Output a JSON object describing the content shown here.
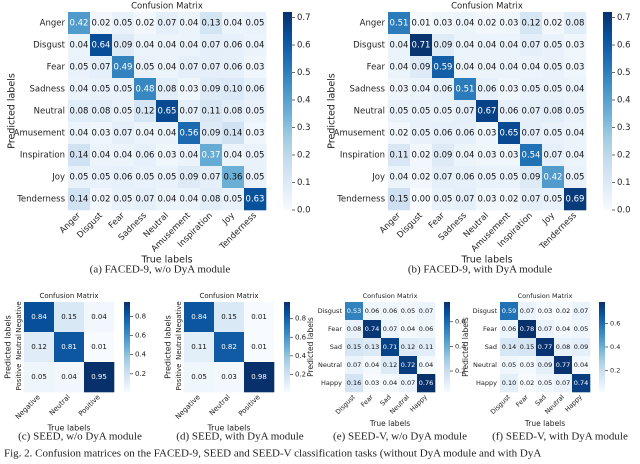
{
  "chart_data": [
    {
      "type": "heatmap",
      "title": "Confusion Matrix",
      "caption": "(a) FACED-9, w/o DyA module",
      "xlabel": "True labels",
      "ylabel": "Predicted labels",
      "categories": [
        "Anger",
        "Disgust",
        "Fear",
        "Sadness",
        "Neutral",
        "Amusement",
        "Inspiration",
        "Joy",
        "Tenderness"
      ],
      "values": [
        [
          0.42,
          0.02,
          0.05,
          0.02,
          0.07,
          0.04,
          0.13,
          0.04,
          0.05
        ],
        [
          0.04,
          0.64,
          0.09,
          0.04,
          0.04,
          0.04,
          0.07,
          0.06,
          0.04
        ],
        [
          0.05,
          0.07,
          0.49,
          0.05,
          0.04,
          0.07,
          0.07,
          0.06,
          0.03
        ],
        [
          0.04,
          0.05,
          0.05,
          0.48,
          0.08,
          0.03,
          0.09,
          0.1,
          0.06
        ],
        [
          0.08,
          0.08,
          0.05,
          0.12,
          0.65,
          0.07,
          0.11,
          0.08,
          0.05
        ],
        [
          0.04,
          0.03,
          0.07,
          0.04,
          0.04,
          0.56,
          0.09,
          0.14,
          0.03
        ],
        [
          0.14,
          0.04,
          0.04,
          0.06,
          0.03,
          0.04,
          0.37,
          0.04,
          0.05
        ],
        [
          0.05,
          0.05,
          0.06,
          0.05,
          0.05,
          0.09,
          0.07,
          0.36,
          0.05
        ],
        [
          0.14,
          0.02,
          0.05,
          0.07,
          0.04,
          0.04,
          0.08,
          0.05,
          0.63
        ]
      ],
      "value_labels": [
        [
          "0.42",
          "0.02",
          "0.05",
          "0.02",
          "0.07",
          "0.04",
          "0.13",
          "0.04",
          "0.05"
        ],
        [
          "0.04",
          "0.64",
          "0.09",
          "0.04",
          "0.04",
          "0.04",
          "0.07",
          "0.06",
          "0.04"
        ],
        [
          "0.05",
          "0.07",
          "0.49",
          "0.05",
          "0.04",
          "0.07",
          "0.07",
          "0.06",
          "0.03"
        ],
        [
          "0.04",
          "0.05",
          "0.05",
          "0.48",
          "0.08",
          "0.03",
          "0.09",
          "0.10",
          "0.06"
        ],
        [
          "0.08",
          "0.08",
          "0.05",
          "0.12",
          "0.65",
          "0.07",
          "0.11",
          "0.08",
          "0.05"
        ],
        [
          "0.04",
          "0.03",
          "0.07",
          "0.04",
          "0.04",
          "0.56",
          "0.09",
          "0.14",
          "0.03"
        ],
        [
          "0.14",
          "0.04",
          "0.04",
          "0.06",
          "0.03",
          "0.04",
          "0.37",
          "0.04",
          "0.05"
        ],
        [
          "0.05",
          "0.05",
          "0.06",
          "0.05",
          "0.05",
          "0.09",
          "0.07",
          "0.36",
          "0.05"
        ],
        [
          "0.14",
          "0.02",
          "0.05",
          "0.07",
          "0.04",
          "0.04",
          "0.08",
          "0.05",
          "0.63"
        ]
      ],
      "clim": [
        0,
        0.72
      ],
      "cticks": [
        {
          "value": 0,
          "label": "0.0"
        },
        0.1,
        0.2,
        0.3,
        0.4,
        0.5,
        0.6,
        0.7
      ],
      "colors": [
        "#f7fbff",
        "#deebf7",
        "#c6dbef",
        "#9ecae1",
        "#6baed6",
        "#4292c6",
        "#2171b5",
        "#08519c",
        "#08306b"
      ]
    },
    {
      "type": "heatmap",
      "title": "Confusion Matrix",
      "caption": "(b) FACED-9, with DyA module",
      "xlabel": "True labels",
      "ylabel": "Predicted labels",
      "categories": [
        "Anger",
        "Disgust",
        "Fear",
        "Sadness",
        "Neutral",
        "Amusement",
        "Inspiration",
        "Joy",
        "Tenderness"
      ],
      "values": [
        [
          0.51,
          0.01,
          0.03,
          0.04,
          0.02,
          0.03,
          0.12,
          0.02,
          0.08
        ],
        [
          0.04,
          0.71,
          0.09,
          0.04,
          0.04,
          0.04,
          0.07,
          0.05,
          0.03
        ],
        [
          0.04,
          0.09,
          0.59,
          0.04,
          0.04,
          0.04,
          0.04,
          0.05,
          0.03
        ],
        [
          0.03,
          0.04,
          0.06,
          0.51,
          0.06,
          0.03,
          0.05,
          0.05,
          0.04
        ],
        [
          0.05,
          0.05,
          0.05,
          0.07,
          0.67,
          0.06,
          0.07,
          0.08,
          0.05
        ],
        [
          0.02,
          0.05,
          0.06,
          0.06,
          0.03,
          0.65,
          0.07,
          0.05,
          0.04
        ],
        [
          0.11,
          0.02,
          0.09,
          0.04,
          0.03,
          0.03,
          0.54,
          0.07,
          0.04
        ],
        [
          0.04,
          0.02,
          0.07,
          0.06,
          0.05,
          0.05,
          0.09,
          0.42,
          0.05
        ],
        [
          0.15,
          0,
          0.05,
          0.07,
          0.03,
          0.02,
          0.07,
          0.05,
          0.69
        ]
      ],
      "value_labels": [
        [
          "0.51",
          "0.01",
          "0.03",
          "0.04",
          "0.02",
          "0.03",
          "0.12",
          "0.02",
          "0.08"
        ],
        [
          "0.04",
          "0.71",
          "0.09",
          "0.04",
          "0.04",
          "0.04",
          "0.07",
          "0.05",
          "0.03"
        ],
        [
          "0.04",
          "0.09",
          "0.59",
          "0.04",
          "0.04",
          "0.04",
          "0.04",
          "0.05",
          "0.03"
        ],
        [
          "0.03",
          "0.04",
          "0.06",
          "0.51",
          "0.06",
          "0.03",
          "0.05",
          "0.05",
          "0.04"
        ],
        [
          "0.05",
          "0.05",
          "0.05",
          "0.07",
          "0.67",
          "0.06",
          "0.07",
          "0.08",
          "0.05"
        ],
        [
          "0.02",
          "0.05",
          "0.06",
          "0.06",
          "0.03",
          "0.65",
          "0.07",
          "0.05",
          "0.04"
        ],
        [
          "0.11",
          "0.02",
          "0.09",
          "0.04",
          "0.03",
          "0.03",
          "0.54",
          "0.07",
          "0.04"
        ],
        [
          "0.04",
          "0.02",
          "0.07",
          "0.06",
          "0.05",
          "0.05",
          "0.09",
          "0.42",
          "0.05"
        ],
        [
          "0.15",
          "0.00",
          "0.05",
          "0.07",
          "0.03",
          "0.02",
          "0.07",
          "0.05",
          "0.69"
        ]
      ],
      "clim": [
        0,
        0.72
      ],
      "cticks": [
        {
          "value": 0,
          "label": "0.0"
        },
        0.1,
        0.2,
        0.3,
        0.4,
        0.5,
        0.6,
        0.7
      ],
      "colors": [
        "#f7fbff",
        "#deebf7",
        "#c6dbef",
        "#9ecae1",
        "#6baed6",
        "#4292c6",
        "#2171b5",
        "#08519c",
        "#08306b"
      ]
    },
    {
      "type": "heatmap",
      "title": "Confusion Matrix",
      "caption": "(c) SEED, w/o DyA module",
      "xlabel": "True labels",
      "ylabel": "Predicted labels",
      "categories": [
        "Negative",
        "Neutral",
        "Positive"
      ],
      "values": [
        [
          0.84,
          0.15,
          0.04
        ],
        [
          0.12,
          0.81,
          0.01
        ],
        [
          0.05,
          0.04,
          0.95
        ]
      ],
      "value_labels": [
        [
          "0.84",
          "0.15",
          "0.04"
        ],
        [
          "0.12",
          "0.81",
          "0.01"
        ],
        [
          "0.05",
          "0.04",
          "0.95"
        ]
      ],
      "clim": [
        0.01,
        0.95
      ],
      "cticks": [
        0.2,
        0.4,
        0.6,
        0.8
      ],
      "colors": [
        "#f7fbff",
        "#deebf7",
        "#c6dbef",
        "#9ecae1",
        "#6baed6",
        "#4292c6",
        "#2171b5",
        "#08519c",
        "#08306b"
      ]
    },
    {
      "type": "heatmap",
      "title": "Confusion Matrix",
      "caption": "(d) SEED, with DyA module",
      "xlabel": "True labels",
      "ylabel": "Predicted labels",
      "categories": [
        "Negative",
        "Neutral",
        "Positive"
      ],
      "values": [
        [
          0.84,
          0.15,
          0.01
        ],
        [
          0.11,
          0.82,
          0.01
        ],
        [
          0.05,
          0.03,
          0.98
        ]
      ],
      "value_labels": [
        [
          "0.84",
          "0.15",
          "0.01"
        ],
        [
          "0.11",
          "0.82",
          "0.01"
        ],
        [
          "0.05",
          "0.03",
          "0.98"
        ]
      ],
      "clim": [
        0.01,
        0.98
      ],
      "cticks": [
        0.2,
        0.4,
        0.6,
        0.8
      ],
      "colors": [
        "#f7fbff",
        "#deebf7",
        "#c6dbef",
        "#9ecae1",
        "#6baed6",
        "#4292c6",
        "#2171b5",
        "#08519c",
        "#08306b"
      ]
    },
    {
      "type": "heatmap",
      "title": "Confusion Matrix",
      "caption": "(e) SEED-V, w/o DyA module",
      "xlabel": "True labels",
      "ylabel": "Predicted labels",
      "categories": [
        "Disgust",
        "Fear",
        "Sad",
        "Neutral",
        "Happy"
      ],
      "values": [
        [
          0.53,
          0.06,
          0.06,
          0.05,
          0.07
        ],
        [
          0.08,
          0.74,
          0.07,
          0.04,
          0.06
        ],
        [
          0.15,
          0.13,
          0.71,
          0.12,
          0.11
        ],
        [
          0.07,
          0.04,
          0.12,
          0.72,
          0.04
        ],
        [
          0.16,
          0.03,
          0.04,
          0.07,
          0.76
        ]
      ],
      "value_labels": [
        [
          "0.53",
          "0.06",
          "0.06",
          "0.05",
          "0.07"
        ],
        [
          "0.08",
          "0.74",
          "0.07",
          "0.04",
          "0.06"
        ],
        [
          "0.15",
          "0.13",
          "0.71",
          "0.12",
          "0.11"
        ],
        [
          "0.07",
          "0.04",
          "0.12",
          "0.72",
          "0.04"
        ],
        [
          "0.16",
          "0.03",
          "0.04",
          "0.07",
          "0.76"
        ]
      ],
      "clim": [
        0.03,
        0.76
      ],
      "cticks": [
        0.2,
        0.4,
        0.6
      ],
      "colors": [
        "#f7fbff",
        "#deebf7",
        "#c6dbef",
        "#9ecae1",
        "#6baed6",
        "#4292c6",
        "#2171b5",
        "#08519c",
        "#08306b"
      ]
    },
    {
      "type": "heatmap",
      "title": "Confusion Matrix",
      "caption": "(f) SEED-V, with DyA module",
      "xlabel": "True labels",
      "ylabel": "Predicted labels",
      "categories": [
        "Disgust",
        "Fear",
        "Sad",
        "Neutral",
        "Happy"
      ],
      "values": [
        [
          0.59,
          0.07,
          0.03,
          0.02,
          0.07
        ],
        [
          0.06,
          0.78,
          0.07,
          0.04,
          0.05
        ],
        [
          0.14,
          0.15,
          0.77,
          0.08,
          0.09
        ],
        [
          0.05,
          0.03,
          0.09,
          0.77,
          0.04
        ],
        [
          0.1,
          0.02,
          0.05,
          0.07,
          0.74
        ]
      ],
      "value_labels": [
        [
          "0.59",
          "0.07",
          "0.03",
          "0.02",
          "0.07"
        ],
        [
          "0.06",
          "0.78",
          "0.07",
          "0.04",
          "0.05"
        ],
        [
          "0.14",
          "0.15",
          "0.77",
          "0.08",
          "0.09"
        ],
        [
          "0.05",
          "0.03",
          "0.09",
          "0.77",
          "0.04"
        ],
        [
          "0.10",
          "0.02",
          "0.05",
          "0.07",
          "0.74"
        ]
      ],
      "clim": [
        0.02,
        0.78
      ],
      "cticks": [
        0.2,
        0.4,
        0.6
      ],
      "colors": [
        "#f7fbff",
        "#deebf7",
        "#c6dbef",
        "#9ecae1",
        "#6baed6",
        "#4292c6",
        "#2171b5",
        "#08519c",
        "#08306b"
      ]
    }
  ],
  "figure_caption": "Fig. 2. Confusion matrices on the FACED-9, SEED and SEED-V classification tasks (without DyA module and with DyA"
}
